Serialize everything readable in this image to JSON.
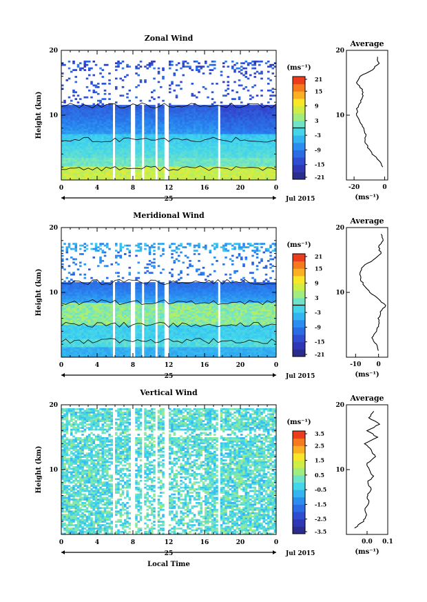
{
  "chart_data": [
    {
      "type": "heatmap",
      "title": "Zonal Wind",
      "ylabel": "Height (km)",
      "ylim": [
        0,
        20
      ],
      "yticks": [
        20,
        10
      ],
      "xlim": [
        0,
        24
      ],
      "xticks": [
        "0",
        "4",
        "8",
        "12",
        "16",
        "20",
        "0"
      ],
      "date_label": "25",
      "month_label": "Jul 2015",
      "colorbar": {
        "unit": "(ms⁻¹)",
        "range": [
          -21,
          21
        ],
        "ticks": [
          "21",
          "15",
          "9",
          "3",
          "-3",
          "-9",
          "-15",
          "-21"
        ],
        "marker_value": 0
      },
      "average": {
        "title": "Average",
        "xlabel": "(ms⁻¹)",
        "xlim": [
          -25,
          2
        ],
        "xticks": [
          "-20",
          "0"
        ],
        "height": [
          2,
          3,
          4,
          5,
          6,
          7,
          8,
          9,
          10,
          11,
          12,
          13,
          14,
          15,
          16,
          17,
          18,
          19
        ],
        "values": [
          -1,
          -4,
          -8,
          -11,
          -13,
          -12,
          -14,
          -16,
          -18,
          -18,
          -16,
          -14,
          -15,
          -18,
          -16,
          -8,
          -4,
          -5
        ]
      },
      "contour_levels": [
        0
      ]
    },
    {
      "type": "heatmap",
      "title": "Meridional Wind",
      "ylabel": "Height (km)",
      "ylim": [
        0,
        20
      ],
      "yticks": [
        20,
        10
      ],
      "xlim": [
        0,
        24
      ],
      "xticks": [
        "0",
        "4",
        "8",
        "12",
        "16",
        "20",
        "0"
      ],
      "date_label": "25",
      "month_label": "Jul 2015",
      "colorbar": {
        "unit": "(ms⁻¹)",
        "range": [
          -21,
          21
        ],
        "ticks": [
          "21",
          "15",
          "9",
          "3",
          "-3",
          "-9",
          "-15",
          "-21"
        ],
        "marker_value": 0
      },
      "average": {
        "title": "Average",
        "xlabel": "(ms⁻¹)",
        "xlim": [
          -14,
          4
        ],
        "xticks": [
          "-10",
          "0"
        ],
        "height": [
          1,
          2,
          3,
          4,
          5,
          6,
          7,
          8,
          9,
          10,
          11,
          12,
          13,
          14,
          15,
          16,
          17,
          18,
          19
        ],
        "values": [
          0,
          -1,
          -3,
          -1,
          0,
          0,
          1,
          3,
          0,
          -4,
          -6,
          -8,
          -8,
          -7,
          -2,
          1,
          0,
          2,
          1
        ]
      },
      "contour_levels": [
        0
      ]
    },
    {
      "type": "heatmap",
      "title": "Vertical Wind",
      "ylabel": "Height (km)",
      "xlabel": "Local Time",
      "ylim": [
        0,
        20
      ],
      "yticks": [
        20,
        10
      ],
      "xlim": [
        0,
        24
      ],
      "xticks": [
        "0",
        "4",
        "8",
        "12",
        "16",
        "20",
        "0"
      ],
      "date_label": "25",
      "month_label": "Jul 2015",
      "colorbar": {
        "unit": "(ms⁻¹)",
        "range": [
          -3.5,
          3.5
        ],
        "ticks": [
          "3.5",
          "2.5",
          "1.5",
          "0.5",
          "-0.5",
          "-1.5",
          "-2.5",
          "-3.5"
        ]
      },
      "average": {
        "title": "Average",
        "xlabel": "(ms⁻¹)",
        "xlim": [
          -0.1,
          0.1
        ],
        "xticks": [
          "0.0",
          "0.1"
        ],
        "height": [
          1,
          2,
          3,
          4,
          5,
          6,
          7,
          8,
          9,
          10,
          11,
          12,
          13,
          14,
          15,
          16,
          17,
          18,
          19
        ],
        "values": [
          -0.06,
          -0.02,
          0.0,
          -0.01,
          0.01,
          0.0,
          0.02,
          0.0,
          0.03,
          0.01,
          0.0,
          0.04,
          0.02,
          -0.01,
          0.05,
          0.0,
          0.06,
          0.01,
          0.03
        ]
      }
    }
  ]
}
